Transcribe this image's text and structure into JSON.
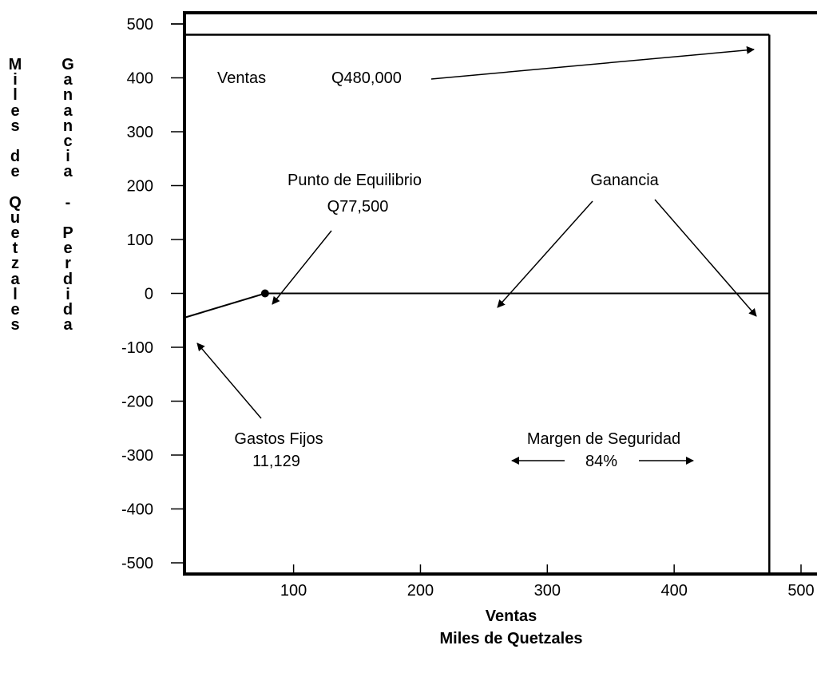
{
  "chart_data": {
    "type": "line",
    "title": "",
    "xlabel": "Ventas",
    "xlabel2": "Miles de Quetzales",
    "ylabel_outer": "Miles de Quetzales",
    "ylabel_inner": "Ganancia - Perdida",
    "xlim": [
      14,
      500
    ],
    "ylim": [
      -500,
      500
    ],
    "x_ticks": [
      100,
      200,
      300,
      400,
      500
    ],
    "y_ticks": [
      500,
      400,
      300,
      200,
      100,
      0,
      -100,
      -200,
      -300,
      -400,
      -500
    ],
    "grid": false,
    "series": [
      {
        "points": [
          [
            14,
            -45
          ],
          [
            77.5,
            0
          ],
          [
            475,
            0
          ]
        ]
      },
      {
        "points": [
          [
            14,
            480
          ],
          [
            475,
            480
          ]
        ]
      }
    ],
    "annotations": {
      "ventas_label": "Ventas",
      "ventas_value": "Q480,000",
      "equilibrio_label": "Punto de Equilibrio",
      "equilibrio_value": "Q77,500",
      "ganancia_label": "Ganancia",
      "gastos_label": "Gastos Fijos",
      "gastos_value": "11,129",
      "margen_label": "Margen de Seguridad",
      "margen_value": "84%"
    }
  }
}
